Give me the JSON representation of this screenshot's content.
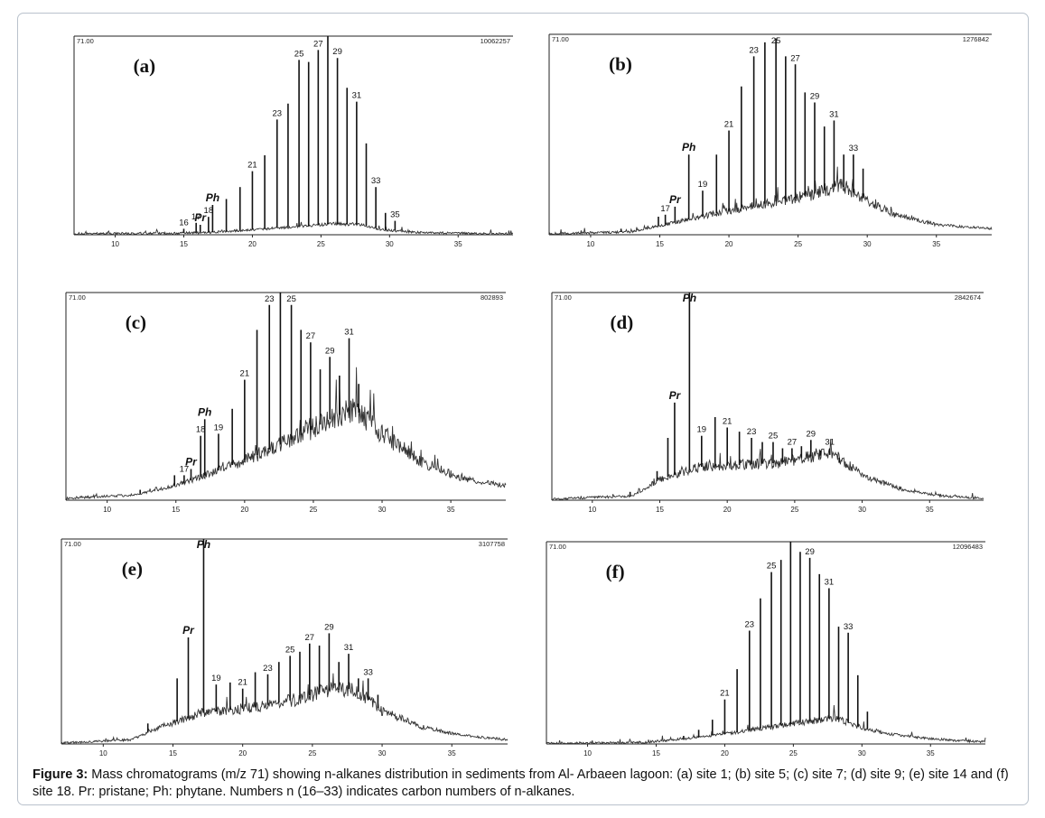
{
  "caption": {
    "label": "Figure 3:",
    "text": "Mass chromatograms (m/z 71) showing n-alkanes distribution in sediments from Al- Arbaeen lagoon: (a) site 1; (b) site 5; (c) site 7; (d) site 9; (e) site 14 and (f) site 18. Pr: pristane; Ph: phytane. Numbers n (16–33) indicates carbon numbers of n-alkanes."
  },
  "chart_data": [
    {
      "type": "line",
      "panel_label": "(a)",
      "top_left_label": "71.00",
      "top_right_label": "10062257",
      "x_ticks": [
        10,
        15,
        20,
        25,
        30,
        35
      ],
      "xlim": [
        7,
        39
      ],
      "ylim": [
        0,
        100
      ],
      "baseline": [
        [
          7,
          0.5
        ],
        [
          14,
          0.7
        ],
        [
          17,
          1.2
        ],
        [
          20,
          2.5
        ],
        [
          23,
          4
        ],
        [
          26,
          5.5
        ],
        [
          28,
          5
        ],
        [
          29.5,
          2.5
        ],
        [
          32,
          1.2
        ],
        [
          36,
          0.6
        ],
        [
          39,
          0.5
        ]
      ],
      "peaks": [
        {
          "x": 15,
          "height": 3,
          "label": "16"
        },
        {
          "x": 15.9,
          "height": 6,
          "label": "17"
        },
        {
          "x": 16.2,
          "height": 5,
          "label": "Pr"
        },
        {
          "x": 16.8,
          "height": 9,
          "label": "18"
        },
        {
          "x": 17.1,
          "height": 15,
          "label": "Ph"
        },
        {
          "x": 18.1,
          "height": 18,
          "label": ""
        },
        {
          "x": 19.1,
          "height": 24,
          "label": ""
        },
        {
          "x": 20.0,
          "height": 32,
          "label": "21"
        },
        {
          "x": 20.9,
          "height": 40,
          "label": ""
        },
        {
          "x": 21.8,
          "height": 58,
          "label": "23"
        },
        {
          "x": 22.6,
          "height": 66,
          "label": ""
        },
        {
          "x": 23.4,
          "height": 88,
          "label": "25"
        },
        {
          "x": 24.1,
          "height": 87,
          "label": ""
        },
        {
          "x": 24.8,
          "height": 93,
          "label": "27"
        },
        {
          "x": 25.5,
          "height": 100,
          "label": ""
        },
        {
          "x": 26.2,
          "height": 89,
          "label": "29"
        },
        {
          "x": 26.9,
          "height": 74,
          "label": ""
        },
        {
          "x": 27.6,
          "height": 67,
          "label": "31"
        },
        {
          "x": 28.3,
          "height": 46,
          "label": ""
        },
        {
          "x": 29.0,
          "height": 24,
          "label": "33"
        },
        {
          "x": 29.7,
          "height": 11,
          "label": ""
        },
        {
          "x": 30.4,
          "height": 7,
          "label": "35"
        }
      ]
    },
    {
      "type": "line",
      "panel_label": "(b)",
      "top_left_label": "71.00",
      "top_right_label": "1276842",
      "x_ticks": [
        10,
        15,
        20,
        25,
        30,
        35
      ],
      "xlim": [
        7,
        39
      ],
      "ylim": [
        0,
        100
      ],
      "baseline": [
        [
          7,
          0.5
        ],
        [
          13,
          1.5
        ],
        [
          16,
          6
        ],
        [
          20,
          12
        ],
        [
          23,
          16
        ],
        [
          26,
          20
        ],
        [
          28,
          25
        ],
        [
          30,
          17
        ],
        [
          32,
          10
        ],
        [
          35,
          5
        ],
        [
          39,
          3
        ]
      ],
      "peaks": [
        {
          "x": 12.2,
          "height": 3,
          "label": ""
        },
        {
          "x": 14.9,
          "height": 9,
          "label": ""
        },
        {
          "x": 15.4,
          "height": 10,
          "label": "17"
        },
        {
          "x": 16.1,
          "height": 14,
          "label": "Pr"
        },
        {
          "x": 17.1,
          "height": 40,
          "label": "Ph"
        },
        {
          "x": 18.1,
          "height": 22,
          "label": "19"
        },
        {
          "x": 19.1,
          "height": 40,
          "label": ""
        },
        {
          "x": 20.0,
          "height": 52,
          "label": "21"
        },
        {
          "x": 20.9,
          "height": 74,
          "label": ""
        },
        {
          "x": 21.8,
          "height": 89,
          "label": "23"
        },
        {
          "x": 22.6,
          "height": 96,
          "label": ""
        },
        {
          "x": 23.4,
          "height": 98,
          "label": "25"
        },
        {
          "x": 24.1,
          "height": 89,
          "label": ""
        },
        {
          "x": 24.8,
          "height": 85,
          "label": "27"
        },
        {
          "x": 25.5,
          "height": 71,
          "label": ""
        },
        {
          "x": 26.2,
          "height": 66,
          "label": "29"
        },
        {
          "x": 26.9,
          "height": 54,
          "label": ""
        },
        {
          "x": 27.6,
          "height": 57,
          "label": "31"
        },
        {
          "x": 28.3,
          "height": 40,
          "label": ""
        },
        {
          "x": 29.0,
          "height": 40,
          "label": "33"
        },
        {
          "x": 29.7,
          "height": 33,
          "label": ""
        }
      ]
    },
    {
      "type": "line",
      "panel_label": "(c)",
      "top_left_label": "71.00",
      "top_right_label": "802893",
      "x_ticks": [
        10,
        15,
        20,
        25,
        30,
        35
      ],
      "xlim": [
        7,
        39
      ],
      "ylim": [
        0,
        100
      ],
      "baseline": [
        [
          7,
          1
        ],
        [
          12,
          2.5
        ],
        [
          15,
          7
        ],
        [
          18,
          14
        ],
        [
          21,
          22
        ],
        [
          24,
          31
        ],
        [
          26.5,
          40
        ],
        [
          28,
          44
        ],
        [
          30,
          32
        ],
        [
          33,
          18
        ],
        [
          36,
          10
        ],
        [
          39,
          7
        ]
      ],
      "peaks": [
        {
          "x": 12.4,
          "height": 5,
          "label": ""
        },
        {
          "x": 14.9,
          "height": 12,
          "label": ""
        },
        {
          "x": 15.6,
          "height": 12,
          "label": "17"
        },
        {
          "x": 16.1,
          "height": 15,
          "label": "Pr"
        },
        {
          "x": 16.8,
          "height": 31,
          "label": "18"
        },
        {
          "x": 17.1,
          "height": 39,
          "label": "Ph"
        },
        {
          "x": 18.1,
          "height": 32,
          "label": "19"
        },
        {
          "x": 19.1,
          "height": 44,
          "label": ""
        },
        {
          "x": 20.0,
          "height": 58,
          "label": "21"
        },
        {
          "x": 20.9,
          "height": 82,
          "label": ""
        },
        {
          "x": 21.8,
          "height": 94,
          "label": "23"
        },
        {
          "x": 22.6,
          "height": 100,
          "label": ""
        },
        {
          "x": 23.4,
          "height": 94,
          "label": "25"
        },
        {
          "x": 24.1,
          "height": 82,
          "label": ""
        },
        {
          "x": 24.8,
          "height": 76,
          "label": "27"
        },
        {
          "x": 25.5,
          "height": 63,
          "label": ""
        },
        {
          "x": 26.2,
          "height": 69,
          "label": "29"
        },
        {
          "x": 26.9,
          "height": 60,
          "label": ""
        },
        {
          "x": 27.6,
          "height": 78,
          "label": "31"
        },
        {
          "x": 28.3,
          "height": 56,
          "label": ""
        }
      ]
    },
    {
      "type": "line",
      "panel_label": "(d)",
      "top_left_label": "71.00",
      "top_right_label": "2842674",
      "x_ticks": [
        10,
        15,
        20,
        25,
        30,
        35
      ],
      "xlim": [
        7,
        39
      ],
      "ylim": [
        0,
        100
      ],
      "baseline": [
        [
          7,
          0.5
        ],
        [
          13,
          2
        ],
        [
          15,
          10
        ],
        [
          18,
          16
        ],
        [
          21,
          17
        ],
        [
          24,
          18
        ],
        [
          26,
          21
        ],
        [
          28,
          22
        ],
        [
          30,
          12
        ],
        [
          33,
          5
        ],
        [
          36,
          2
        ],
        [
          39,
          1
        ]
      ],
      "peaks": [
        {
          "x": 12.8,
          "height": 4,
          "label": ""
        },
        {
          "x": 14.8,
          "height": 14,
          "label": ""
        },
        {
          "x": 15.6,
          "height": 30,
          "label": ""
        },
        {
          "x": 16.1,
          "height": 47,
          "label": "Pr"
        },
        {
          "x": 17.2,
          "height": 100,
          "label": "Ph"
        },
        {
          "x": 18.1,
          "height": 31,
          "label": "19"
        },
        {
          "x": 19.1,
          "height": 40,
          "label": ""
        },
        {
          "x": 20.0,
          "height": 35,
          "label": "21"
        },
        {
          "x": 20.9,
          "height": 33,
          "label": ""
        },
        {
          "x": 21.8,
          "height": 30,
          "label": "23"
        },
        {
          "x": 22.6,
          "height": 28,
          "label": ""
        },
        {
          "x": 23.4,
          "height": 28,
          "label": "25"
        },
        {
          "x": 24.1,
          "height": 25,
          "label": ""
        },
        {
          "x": 24.8,
          "height": 25,
          "label": "27"
        },
        {
          "x": 25.5,
          "height": 26,
          "label": ""
        },
        {
          "x": 26.2,
          "height": 29,
          "label": "29"
        },
        {
          "x": 26.9,
          "height": 24,
          "label": ""
        },
        {
          "x": 27.6,
          "height": 25,
          "label": "31"
        },
        {
          "x": 28.3,
          "height": 18,
          "label": ""
        }
      ]
    },
    {
      "type": "line",
      "panel_label": "(e)",
      "top_left_label": "71.00",
      "top_right_label": "3107758",
      "x_ticks": [
        10,
        15,
        20,
        25,
        30,
        35
      ],
      "xlim": [
        7,
        39
      ],
      "ylim": [
        0,
        100
      ],
      "baseline": [
        [
          7,
          0.5
        ],
        [
          12,
          2
        ],
        [
          14,
          8
        ],
        [
          17,
          15
        ],
        [
          21,
          18
        ],
        [
          24,
          22
        ],
        [
          26,
          26
        ],
        [
          28,
          27
        ],
        [
          30,
          16
        ],
        [
          33,
          8
        ],
        [
          36,
          4
        ],
        [
          39,
          2
        ]
      ],
      "peaks": [
        {
          "x": 13.2,
          "height": 10,
          "label": ""
        },
        {
          "x": 15.3,
          "height": 32,
          "label": ""
        },
        {
          "x": 16.1,
          "height": 52,
          "label": "Pr"
        },
        {
          "x": 17.2,
          "height": 100,
          "label": "Ph"
        },
        {
          "x": 18.1,
          "height": 29,
          "label": "19"
        },
        {
          "x": 19.1,
          "height": 30,
          "label": ""
        },
        {
          "x": 20.0,
          "height": 27,
          "label": "21"
        },
        {
          "x": 20.9,
          "height": 35,
          "label": ""
        },
        {
          "x": 21.8,
          "height": 34,
          "label": "23"
        },
        {
          "x": 22.6,
          "height": 40,
          "label": ""
        },
        {
          "x": 23.4,
          "height": 43,
          "label": "25"
        },
        {
          "x": 24.1,
          "height": 45,
          "label": ""
        },
        {
          "x": 24.8,
          "height": 49,
          "label": "27"
        },
        {
          "x": 25.5,
          "height": 48,
          "label": ""
        },
        {
          "x": 26.2,
          "height": 54,
          "label": "29"
        },
        {
          "x": 26.9,
          "height": 40,
          "label": ""
        },
        {
          "x": 27.6,
          "height": 44,
          "label": "31"
        },
        {
          "x": 28.3,
          "height": 32,
          "label": ""
        },
        {
          "x": 29.0,
          "height": 32,
          "label": "33"
        },
        {
          "x": 29.7,
          "height": 24,
          "label": ""
        }
      ]
    },
    {
      "type": "line",
      "panel_label": "(f)",
      "top_left_label": "71.00",
      "top_right_label": "12096483",
      "x_ticks": [
        10,
        15,
        20,
        25,
        30,
        35
      ],
      "xlim": [
        7,
        39
      ],
      "ylim": [
        0,
        100
      ],
      "baseline": [
        [
          7,
          0.3
        ],
        [
          14,
          0.8
        ],
        [
          17,
          2.5
        ],
        [
          20,
          5
        ],
        [
          23,
          8
        ],
        [
          26,
          11
        ],
        [
          28,
          13
        ],
        [
          30,
          8
        ],
        [
          32,
          5
        ],
        [
          35,
          2.5
        ],
        [
          39,
          1
        ]
      ],
      "peaks": [
        {
          "x": 17.0,
          "height": 4,
          "label": ""
        },
        {
          "x": 18.1,
          "height": 7,
          "label": ""
        },
        {
          "x": 19.1,
          "height": 12,
          "label": ""
        },
        {
          "x": 20.0,
          "height": 22,
          "label": "21"
        },
        {
          "x": 20.9,
          "height": 37,
          "label": ""
        },
        {
          "x": 21.8,
          "height": 56,
          "label": "23"
        },
        {
          "x": 22.6,
          "height": 72,
          "label": ""
        },
        {
          "x": 23.4,
          "height": 85,
          "label": "25"
        },
        {
          "x": 24.1,
          "height": 91,
          "label": ""
        },
        {
          "x": 24.8,
          "height": 100,
          "label": ""
        },
        {
          "x": 25.5,
          "height": 95,
          "label": ""
        },
        {
          "x": 26.2,
          "height": 92,
          "label": "29"
        },
        {
          "x": 26.9,
          "height": 84,
          "label": ""
        },
        {
          "x": 27.6,
          "height": 77,
          "label": "31"
        },
        {
          "x": 28.3,
          "height": 58,
          "label": ""
        },
        {
          "x": 29.0,
          "height": 55,
          "label": "33"
        },
        {
          "x": 29.7,
          "height": 34,
          "label": ""
        },
        {
          "x": 30.4,
          "height": 16,
          "label": ""
        },
        {
          "x": 31.2,
          "height": 6,
          "label": ""
        }
      ]
    }
  ]
}
